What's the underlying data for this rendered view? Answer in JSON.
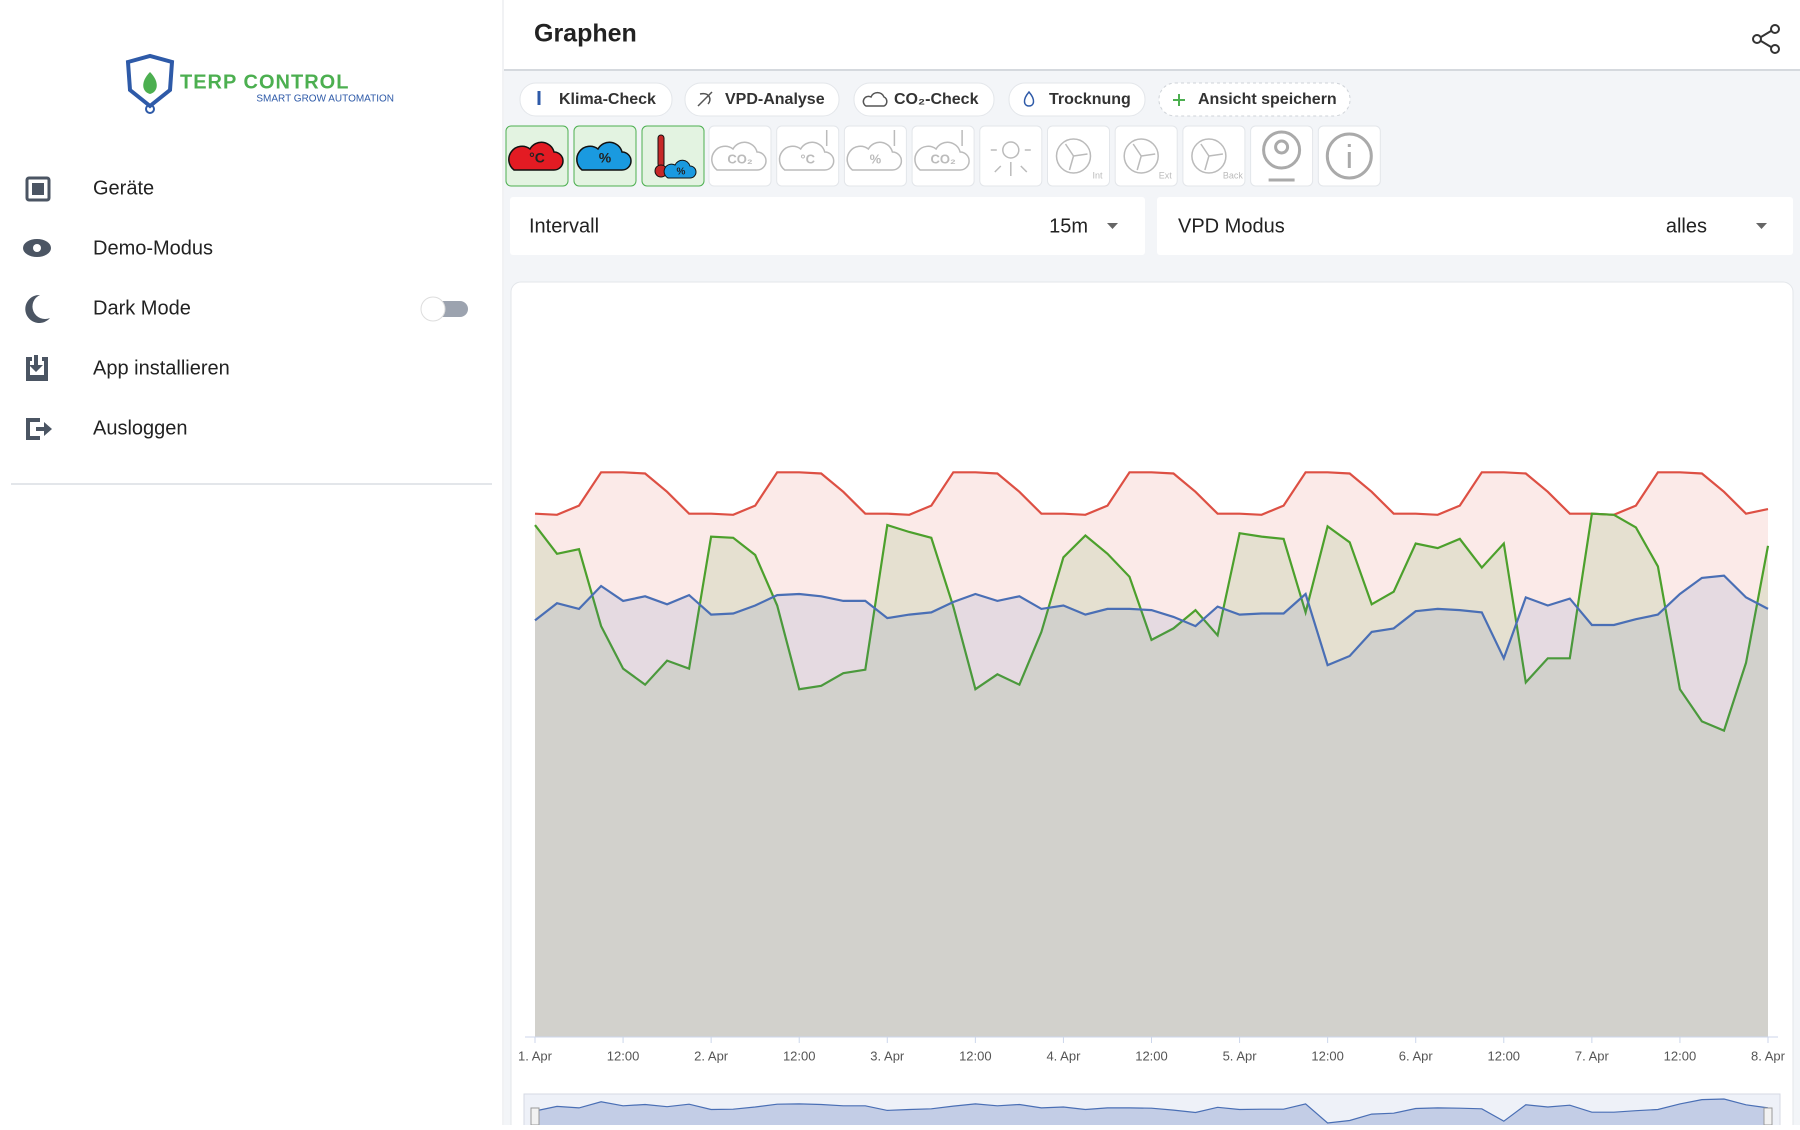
{
  "sidebar": {
    "logo_title": "TERP CONTROL",
    "logo_subtitle": "SMART GROW AUTOMATION",
    "menu": [
      "Geräte",
      "Demo-Modus",
      "Dark Mode",
      "App installieren",
      "Ausloggen"
    ]
  },
  "header": {
    "title": "Graphen"
  },
  "chips": [
    "Klima-Check",
    "VPD-Analyse",
    "CO₂-Check",
    "Trocknung",
    "Ansicht speichern"
  ],
  "toolbar_icons": [
    "°C",
    "%",
    "%",
    "CO₂",
    "°C",
    "%",
    "CO₂",
    "Int",
    "Ext",
    "Back"
  ],
  "filters": [
    {
      "label": "Intervall",
      "value": "15m"
    },
    {
      "label": "VPD Modus",
      "value": "alles"
    }
  ],
  "chart_data": {
    "type": "line",
    "area": true,
    "x": [
      0,
      3,
      6,
      9,
      12,
      15,
      18,
      21,
      24,
      27,
      30,
      33,
      36,
      39,
      42,
      45,
      48,
      51,
      54,
      57,
      60,
      63,
      66,
      69,
      72,
      75,
      78,
      81,
      84,
      87,
      90,
      93,
      96,
      99,
      102,
      105,
      108,
      111,
      114,
      117,
      120,
      123,
      126,
      129,
      132,
      135,
      138,
      141,
      144,
      147,
      150,
      153,
      156,
      159,
      162,
      165,
      168
    ],
    "xlim": [
      0,
      168
    ],
    "xticks": [
      {
        "value": 0,
        "label": "1. Apr"
      },
      {
        "value": 12,
        "label": "12:00"
      },
      {
        "value": 24,
        "label": "2. Apr"
      },
      {
        "value": 36,
        "label": "12:00"
      },
      {
        "value": 48,
        "label": "3. Apr"
      },
      {
        "value": 60,
        "label": "12:00"
      },
      {
        "value": 72,
        "label": "4. Apr"
      },
      {
        "value": 84,
        "label": "12:00"
      },
      {
        "value": 96,
        "label": "5. Apr"
      },
      {
        "value": 108,
        "label": "12:00"
      },
      {
        "value": 120,
        "label": "6. Apr"
      },
      {
        "value": 132,
        "label": "12:00"
      },
      {
        "value": 144,
        "label": "7. Apr"
      },
      {
        "value": 156,
        "label": "12:00"
      },
      {
        "value": 168,
        "label": "8. Apr"
      }
    ],
    "ylim": [
      0,
      650
    ],
    "series": [
      {
        "color": "#dd5044",
        "values": [
          456,
          455,
          463,
          492,
          492,
          491,
          475,
          456,
          456,
          455,
          463,
          492,
          492,
          491,
          475,
          456,
          456,
          455,
          463,
          492,
          492,
          491,
          475,
          456,
          456,
          455,
          463,
          492,
          492,
          491,
          475,
          456,
          456,
          455,
          463,
          492,
          492,
          491,
          475,
          456,
          456,
          455,
          463,
          492,
          492,
          491,
          475,
          456,
          456,
          455,
          463,
          492,
          492,
          491,
          475,
          456,
          460
        ]
      },
      {
        "color": "#4ca02c",
        "values": [
          446,
          421,
          425,
          358,
          321,
          307,
          328,
          321,
          436,
          435,
          420,
          376,
          303,
          306,
          317,
          320,
          446,
          440,
          435,
          375,
          303,
          316,
          307,
          353,
          418,
          437,
          421,
          401,
          346,
          356,
          372,
          350,
          439,
          436,
          434,
          370,
          445,
          431,
          377,
          388,
          430,
          426,
          434,
          409,
          430,
          309,
          330,
          330,
          456,
          455,
          444,
          410,
          303,
          275,
          267,
          326,
          428
        ]
      },
      {
        "color": "#4a6fb5",
        "values": [
          363,
          378,
          373,
          393,
          380,
          384,
          377,
          385,
          368,
          369,
          376,
          385,
          386,
          384,
          380,
          380,
          365,
          368,
          370,
          379,
          386,
          380,
          384,
          373,
          376,
          368,
          373,
          373,
          372,
          366,
          358,
          375,
          368,
          369,
          369,
          386,
          324,
          332,
          353,
          356,
          371,
          373,
          372,
          370,
          330,
          383,
          376,
          382,
          359,
          359,
          364,
          368,
          386,
          400,
          402,
          383,
          373
        ]
      }
    ]
  }
}
